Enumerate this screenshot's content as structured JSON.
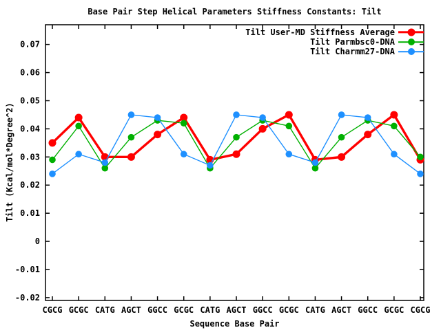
{
  "chart_data": {
    "type": "line",
    "title": "Base Pair Step Helical Parameters Stiffness Constants: Tilt",
    "xlabel": "Sequence Base Pair",
    "ylabel": "Tilt (Kcal/mol*Degree^2)",
    "categories": [
      "CGCG",
      "GCGC",
      "CATG",
      "AGCT",
      "GGCC",
      "GCGC",
      "CATG",
      "AGCT",
      "GGCC",
      "GCGC",
      "CATG",
      "AGCT",
      "GGCC",
      "GCGC",
      "CGCG"
    ],
    "series": [
      {
        "name": "Tilt User-MD Stiffness Average",
        "color": "#ff0000",
        "thick": true,
        "values": [
          0.035,
          0.044,
          0.03,
          0.03,
          0.038,
          0.044,
          0.029,
          0.031,
          0.04,
          0.045,
          0.029,
          0.03,
          0.038,
          0.045,
          0.029
        ]
      },
      {
        "name": "Tilt Parmbsc0-DNA",
        "color": "#00b000",
        "thick": false,
        "values": [
          0.029,
          0.041,
          0.026,
          0.037,
          0.043,
          0.042,
          0.026,
          0.037,
          0.043,
          0.041,
          0.026,
          0.037,
          0.043,
          0.041,
          0.03
        ]
      },
      {
        "name": "Tilt Charmm27-DNA",
        "color": "#1e90ff",
        "thick": false,
        "values": [
          0.024,
          0.031,
          0.028,
          0.045,
          0.044,
          0.031,
          0.027,
          0.045,
          0.044,
          0.031,
          0.028,
          0.045,
          0.044,
          0.031,
          0.024
        ]
      }
    ],
    "ylim": [
      -0.021,
      0.077
    ],
    "ytick_values": [
      0.07,
      0.06,
      0.05,
      0.04,
      0.03,
      0.02,
      0.01,
      0,
      -0.01,
      -0.02
    ],
    "ytick_labels": [
      "0.07",
      "0.06",
      "0.05",
      "0.04",
      "0.03",
      "0.02",
      "0.01",
      "0",
      "-0.01",
      "-0.02"
    ],
    "legend_position": "top-right",
    "grid": false,
    "marker": "circle",
    "axis_color": "#000000",
    "background_color": "#ffffff"
  }
}
